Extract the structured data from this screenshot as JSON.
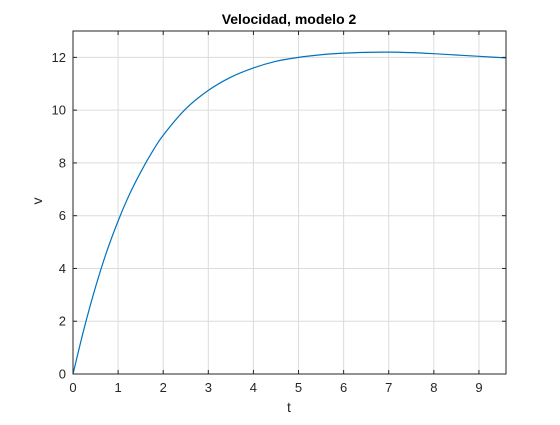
{
  "chart_data": {
    "type": "line",
    "title": "Velocidad, modelo 2",
    "xlabel": "t",
    "ylabel": "v",
    "xlim": [
      0,
      9.6
    ],
    "ylim": [
      0,
      13
    ],
    "xticks": [
      0,
      1,
      2,
      3,
      4,
      5,
      6,
      7,
      8,
      9
    ],
    "yticks": [
      0,
      2,
      4,
      6,
      8,
      10,
      12
    ],
    "xtick_labels": [
      "0",
      "1",
      "2",
      "3",
      "4",
      "5",
      "6",
      "7",
      "8",
      "9"
    ],
    "ytick_labels": [
      "0",
      "2",
      "4",
      "6",
      "8",
      "10",
      "12"
    ],
    "grid": true,
    "series": [
      {
        "color": "#0072BD",
        "x": [
          0,
          0.25,
          0.5,
          0.75,
          1,
          1.25,
          1.5,
          1.75,
          2,
          2.5,
          3,
          3.5,
          4,
          4.5,
          5,
          5.5,
          6,
          6.5,
          7,
          7.5,
          8,
          8.5,
          9,
          9.6
        ],
        "y": [
          0,
          1.75,
          3.3,
          4.65,
          5.8,
          6.8,
          7.65,
          8.4,
          9.05,
          10.05,
          10.75,
          11.25,
          11.6,
          11.85,
          12.0,
          12.1,
          12.16,
          12.19,
          12.2,
          12.18,
          12.14,
          12.09,
          12.04,
          11.98
        ]
      }
    ],
    "colors": {
      "axes": "#262626",
      "grid": "#dcdcdc",
      "line": "#0072BD"
    }
  }
}
